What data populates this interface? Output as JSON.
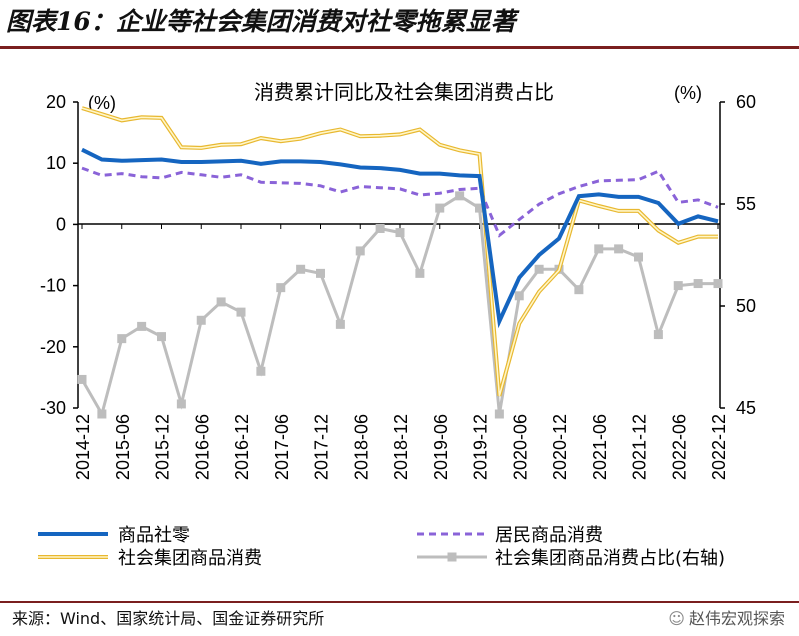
{
  "figure_title": "图表16：企业等社会集团消费对社零拖累显著",
  "source_note": "来源：Wind、国家统计局、国金证券研究所",
  "watermark": "赵伟宏观探索",
  "chart_data": {
    "type": "line",
    "title": "消费累计同比及社会集团消费占比",
    "left_axis": {
      "unit": "(%)",
      "ylim": [
        -30,
        20
      ],
      "ticks": [
        20,
        10,
        0,
        -10,
        -20,
        -30
      ]
    },
    "right_axis": {
      "unit": "(%)",
      "ylim": [
        45,
        60
      ],
      "ticks": [
        60,
        55,
        50,
        45
      ]
    },
    "x": [
      "2014-12",
      "2015-03",
      "2015-06",
      "2015-09",
      "2015-12",
      "2016-03",
      "2016-06",
      "2016-09",
      "2016-12",
      "2017-03",
      "2017-06",
      "2017-09",
      "2017-12",
      "2018-03",
      "2018-06",
      "2018-09",
      "2018-12",
      "2019-03",
      "2019-06",
      "2019-09",
      "2019-12",
      "2020-03",
      "2020-06",
      "2020-09",
      "2020-12",
      "2021-03",
      "2021-06",
      "2021-09",
      "2021-12",
      "2022-03",
      "2022-06",
      "2022-09",
      "2022-12"
    ],
    "x_tick_labels": [
      "2014-12",
      "2015-06",
      "2015-12",
      "2016-06",
      "2016-12",
      "2017-06",
      "2017-12",
      "2018-06",
      "2018-12",
      "2019-06",
      "2019-12",
      "2020-06",
      "2020-12",
      "2021-06",
      "2021-12",
      "2022-06",
      "2022-12"
    ],
    "series": [
      {
        "name": "商品社零",
        "axis": "left",
        "color": "#1565c0",
        "style": "solid",
        "values": [
          12.2,
          10.6,
          10.4,
          10.5,
          10.6,
          10.2,
          10.2,
          10.3,
          10.4,
          9.9,
          10.3,
          10.3,
          10.2,
          9.8,
          9.3,
          9.2,
          8.9,
          8.3,
          8.3,
          8.0,
          7.9,
          -15.8,
          -8.7,
          -5.0,
          -2.3,
          4.6,
          4.9,
          4.5,
          4.5,
          3.5,
          0.1,
          1.3,
          0.5
        ]
      },
      {
        "name": "居民商品消费",
        "axis": "left",
        "color": "#8a63d8",
        "style": "dashed",
        "values": [
          9.2,
          8.0,
          8.3,
          7.8,
          7.6,
          8.5,
          8.1,
          7.7,
          8.1,
          6.9,
          6.8,
          6.7,
          6.3,
          5.3,
          6.2,
          6.0,
          5.8,
          4.8,
          5.1,
          5.7,
          5.9,
          -1.8,
          0.8,
          3.3,
          5.0,
          6.2,
          7.1,
          7.2,
          7.3,
          8.7,
          3.6,
          4.0,
          2.8
        ]
      },
      {
        "name": "社会集团商品消费",
        "axis": "left",
        "color": "#f2d16b",
        "style": "solid",
        "values": [
          19.0,
          18.0,
          17.0,
          17.5,
          17.4,
          12.6,
          12.5,
          13.0,
          13.1,
          14.1,
          13.6,
          14.0,
          14.9,
          15.5,
          14.4,
          14.5,
          14.7,
          15.5,
          13.0,
          12.1,
          11.5,
          -28.0,
          -16.2,
          -11.0,
          -7.5,
          3.9,
          3.0,
          2.2,
          2.2,
          -1.0,
          -3.0,
          -2.0,
          -2.0
        ]
      },
      {
        "name": "社会集团商品消费占比(右轴)",
        "axis": "right",
        "color": "#bdbdbd",
        "style": "solid-marker",
        "values": [
          46.4,
          44.7,
          48.4,
          49.0,
          48.5,
          45.2,
          49.3,
          50.2,
          49.7,
          46.8,
          50.9,
          51.8,
          51.6,
          49.1,
          52.7,
          53.8,
          53.6,
          51.6,
          54.8,
          55.4,
          54.8,
          44.7,
          50.5,
          51.8,
          51.8,
          50.8,
          52.8,
          52.8,
          52.4,
          48.6,
          51.0,
          51.1,
          51.1
        ]
      }
    ],
    "legend_placement": "bottom",
    "grid": false
  }
}
